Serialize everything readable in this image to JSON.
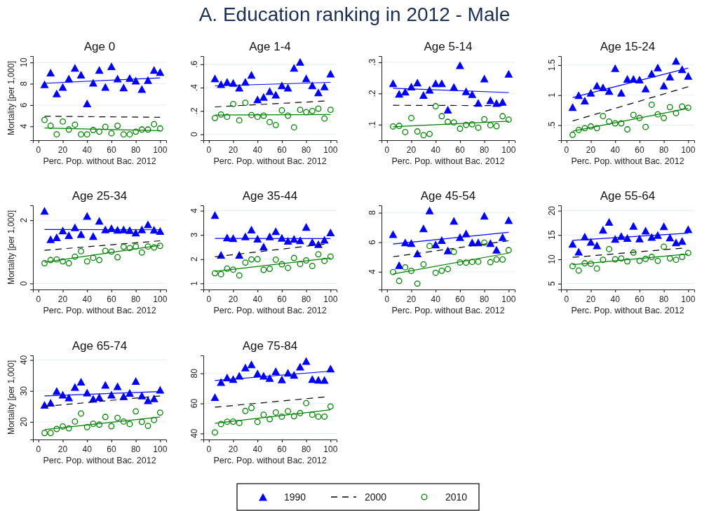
{
  "chart_data": [
    {
      "type": "other",
      "title": "A. Education ranking in 2012 - Male"
    },
    {
      "type": "scatter",
      "title": "Age 0",
      "xlabel": "Perc. Pop. without Bac. 2012",
      "ylabel": "Mortality [per 1,000]",
      "legend": "bottom",
      "grid": "y",
      "x": [
        5,
        10,
        15,
        20,
        25,
        30,
        35,
        40,
        45,
        50,
        55,
        60,
        65,
        70,
        75,
        80,
        85,
        90,
        95,
        100
      ],
      "xlim": [
        -4.5,
        105
      ],
      "xticks": [
        0,
        20,
        40,
        60,
        80,
        100
      ],
      "ylim": [
        2.7,
        10.6
      ],
      "yticks": [
        4,
        6,
        8,
        10
      ],
      "series": [
        {
          "name": "1990",
          "type": "scatter",
          "marker": "triangle",
          "color": "#0000ff",
          "values": [
            7.95,
            9.05,
            7.1,
            7.7,
            8.5,
            9.5,
            8.85,
            6.15,
            8.1,
            9.3,
            7.7,
            9.65,
            8.5,
            7.65,
            8.55,
            8.3,
            7.5,
            8.35,
            9.3,
            9.1
          ]
        },
        {
          "type": "line",
          "x": [
            5,
            100
          ],
          "color": "#0000ff",
          "values": [
            8.05,
            8.55
          ]
        },
        {
          "name": "2000",
          "type": "line",
          "line_style": "dashed",
          "x": [
            5,
            100
          ],
          "color": "#000000",
          "values": [
            4.95,
            4.85
          ]
        },
        {
          "name": "2010",
          "type": "scatter",
          "marker": "circle",
          "color": "#008000",
          "values": [
            4.6,
            4.05,
            3.25,
            4.45,
            3.7,
            4.15,
            3.25,
            3.25,
            3.65,
            3.5,
            3.95,
            3.35,
            4.05,
            3.25,
            3.25,
            3.5,
            3.7,
            3.7,
            4.2,
            3.8
          ]
        },
        {
          "type": "line",
          "x": [
            5,
            100
          ],
          "color": "#008000",
          "values": [
            3.85,
            3.6
          ]
        }
      ]
    },
    {
      "type": "scatter",
      "title": "Age 1-4",
      "xlabel": "Perc. Pop. without Bac. 2012",
      "grid": "y",
      "x": [
        5,
        10,
        15,
        20,
        25,
        30,
        35,
        40,
        45,
        50,
        55,
        60,
        65,
        70,
        75,
        80,
        85,
        90,
        95,
        100
      ],
      "xlim": [
        -4.5,
        105
      ],
      "xticks": [
        0,
        20,
        40,
        60,
        80,
        100
      ],
      "ylim": [
        -0.05,
        0.67
      ],
      "yticks": [
        0,
        {
          "value": 0.2,
          "label": ".2"
        },
        {
          "value": 0.4,
          "label": ".4"
        },
        {
          "value": 0.6,
          "label": ".6"
        }
      ],
      "series": [
        {
          "name": "1990",
          "type": "scatter",
          "marker": "triangle",
          "color": "#0000ff",
          "values": [
            0.48,
            0.43,
            0.45,
            0.44,
            0.4,
            0.45,
            0.51,
            0.3,
            0.32,
            0.37,
            0.34,
            0.42,
            0.4,
            0.57,
            0.62,
            0.48,
            0.42,
            0.36,
            0.41,
            0.52
          ]
        },
        {
          "type": "line",
          "x": [
            5,
            100
          ],
          "color": "#0000ff",
          "values": [
            0.415,
            0.445
          ]
        },
        {
          "name": "2000",
          "type": "line",
          "line_style": "dashed",
          "x": [
            5,
            95
          ],
          "color": "#000000",
          "values": [
            0.235,
            0.285
          ]
        },
        {
          "name": "2010",
          "type": "scatter",
          "marker": "circle",
          "color": "#008000",
          "values": [
            0.14,
            0.17,
            0.15,
            0.26,
            0.12,
            0.27,
            0.165,
            0.15,
            0.16,
            0.105,
            0.08,
            0.205,
            0.16,
            0.06,
            0.21,
            0.19,
            0.2,
            0.22,
            0.135,
            0.21
          ]
        },
        {
          "type": "line",
          "x": [
            5,
            100
          ],
          "color": "#008000",
          "values": [
            0.165,
            0.17
          ]
        }
      ]
    },
    {
      "type": "scatter",
      "title": "Age 5-14",
      "xlabel": "Perc. Pop. without Bac. 2012",
      "grid": "y",
      "x": [
        5,
        10,
        15,
        20,
        25,
        30,
        35,
        40,
        45,
        50,
        55,
        60,
        65,
        70,
        75,
        80,
        85,
        90,
        95,
        100
      ],
      "xlim": [
        -4.5,
        105
      ],
      "xticks": [
        0,
        20,
        40,
        60,
        80,
        100
      ],
      "ylim": [
        0.05,
        0.32
      ],
      "yticks": [
        {
          "value": 0.1,
          "label": ".1"
        },
        {
          "value": 0.2,
          "label": ".2"
        },
        {
          "value": 0.3,
          "label": ".3"
        }
      ],
      "series": [
        {
          "name": "1990",
          "type": "scatter",
          "marker": "triangle",
          "color": "#0000ff",
          "values": [
            0.233,
            0.199,
            0.206,
            0.222,
            0.235,
            0.195,
            0.212,
            0.233,
            0.233,
            0.148,
            0.221,
            0.291,
            0.207,
            0.198,
            0.17,
            0.248,
            0.178,
            0.169,
            0.173,
            0.263
          ]
        },
        {
          "type": "line",
          "x": [
            5,
            100
          ],
          "color": "#0000ff",
          "values": [
            0.217,
            0.203
          ]
        },
        {
          "name": "2000",
          "type": "line",
          "line_style": "dashed",
          "x": [
            5,
            95
          ],
          "color": "#000000",
          "values": [
            0.162,
            0.161
          ]
        },
        {
          "name": "2010",
          "type": "scatter",
          "marker": "circle",
          "color": "#008000",
          "values": [
            0.094,
            0.096,
            0.076,
            0.121,
            0.078,
            0.066,
            0.07,
            0.159,
            0.127,
            0.109,
            0.107,
            0.087,
            0.099,
            0.101,
            0.09,
            0.117,
            0.098,
            0.095,
            0.127,
            0.116
          ]
        },
        {
          "type": "line",
          "x": [
            5,
            100
          ],
          "color": "#008000",
          "values": [
            0.093,
            0.111
          ]
        }
      ]
    },
    {
      "type": "scatter",
      "title": "Age 15-24",
      "xlabel": "Perc. Pop. without Bac. 2012",
      "grid": "y",
      "x": [
        5,
        10,
        15,
        20,
        25,
        30,
        35,
        40,
        45,
        50,
        55,
        60,
        65,
        70,
        75,
        80,
        85,
        90,
        95,
        100
      ],
      "xlim": [
        -4.5,
        105
      ],
      "xticks": [
        0,
        20,
        40,
        60,
        80,
        100
      ],
      "ylim": [
        0.25,
        1.65
      ],
      "yticks": [
        {
          "value": 0.5,
          "label": ".5"
        },
        1,
        1.5
      ],
      "series": [
        {
          "name": "1990",
          "type": "scatter",
          "marker": "triangle",
          "color": "#0000ff",
          "values": [
            0.8,
            1.0,
            0.91,
            1.04,
            1.16,
            1.13,
            1.07,
            1.45,
            1.04,
            1.27,
            1.27,
            1.26,
            1.11,
            1.36,
            1.46,
            1.16,
            1.31,
            1.57,
            1.43,
            1.32
          ]
        },
        {
          "type": "line",
          "x": [
            5,
            100
          ],
          "color": "#0000ff",
          "values": [
            0.96,
            1.45
          ]
        },
        {
          "name": "2000",
          "type": "line",
          "line_style": "dashed",
          "x": [
            5,
            100
          ],
          "color": "#000000",
          "values": [
            0.57,
            1.14
          ]
        },
        {
          "name": "2010",
          "type": "scatter",
          "marker": "circle",
          "color": "#008000",
          "values": [
            0.34,
            0.42,
            0.45,
            0.48,
            0.45,
            0.65,
            0.56,
            0.53,
            0.53,
            0.43,
            0.67,
            0.62,
            0.47,
            0.84,
            0.68,
            0.62,
            0.8,
            0.7,
            0.81,
            0.79
          ]
        },
        {
          "type": "line",
          "x": [
            5,
            100
          ],
          "color": "#008000",
          "values": [
            0.4,
            0.78
          ]
        }
      ]
    },
    {
      "type": "scatter",
      "title": "Age 25-34",
      "xlabel": "Perc. Pop. without Bac. 2012",
      "ylabel": "Mortality [per 1,000]",
      "grid": "y",
      "x": [
        5,
        10,
        15,
        20,
        25,
        30,
        35,
        40,
        45,
        50,
        55,
        60,
        65,
        70,
        75,
        80,
        85,
        90,
        95,
        100
      ],
      "xlim": [
        -4.5,
        105
      ],
      "xticks": [
        0,
        20,
        40,
        60,
        80,
        100
      ],
      "ylim": [
        -0.19,
        2.47
      ],
      "yticks": [
        0,
        2
      ],
      "series": [
        {
          "name": "1990",
          "type": "scatter",
          "marker": "triangle",
          "color": "#0000ff",
          "values": [
            2.3,
            1.4,
            1.46,
            1.68,
            1.53,
            1.78,
            1.56,
            2.14,
            1.5,
            1.98,
            1.71,
            1.75,
            1.7,
            1.71,
            1.69,
            1.61,
            1.71,
            1.87,
            1.7,
            1.66
          ]
        },
        {
          "type": "line",
          "x": [
            5,
            100
          ],
          "color": "#0000ff",
          "values": [
            1.71,
            1.7
          ]
        },
        {
          "name": "2000",
          "type": "line",
          "line_style": "dashed",
          "x": [
            5,
            100
          ],
          "color": "#000000",
          "values": [
            1.05,
            1.35
          ]
        },
        {
          "name": "2010",
          "type": "scatter",
          "marker": "circle",
          "color": "#008000",
          "values": [
            0.64,
            0.74,
            0.76,
            0.7,
            0.64,
            0.85,
            1.02,
            0.7,
            0.81,
            0.74,
            1.03,
            1.01,
            0.83,
            1.16,
            1.12,
            1.17,
            0.98,
            1.17,
            1.14,
            1.19
          ]
        },
        {
          "type": "line",
          "x": [
            5,
            100
          ],
          "color": "#008000",
          "values": [
            0.67,
            1.21
          ]
        }
      ]
    },
    {
      "type": "scatter",
      "title": "Age 35-44",
      "xlabel": "Perc. Pop. without Bac. 2012",
      "grid": "y",
      "x": [
        5,
        10,
        15,
        20,
        25,
        30,
        35,
        40,
        45,
        50,
        55,
        60,
        65,
        70,
        75,
        80,
        85,
        90,
        95,
        100
      ],
      "xlim": [
        -4.5,
        105
      ],
      "xticks": [
        0,
        20,
        40,
        60,
        80,
        100
      ],
      "ylim": [
        0.75,
        4.22
      ],
      "yticks": [
        1,
        2,
        3,
        4
      ],
      "series": [
        {
          "name": "1990",
          "type": "scatter",
          "marker": "triangle",
          "color": "#0000ff",
          "values": [
            3.82,
            2.18,
            2.9,
            2.87,
            2.18,
            2.94,
            3.22,
            2.85,
            2.52,
            2.94,
            3.16,
            2.88,
            2.76,
            2.84,
            2.78,
            3.33,
            2.71,
            2.62,
            2.8,
            3.11
          ]
        },
        {
          "type": "line",
          "x": [
            5,
            100
          ],
          "color": "#0000ff",
          "values": [
            2.86,
            2.85
          ]
        },
        {
          "name": "2000",
          "type": "line",
          "line_style": "dashed",
          "x": [
            5,
            95
          ],
          "color": "#000000",
          "values": [
            2.1,
            2.62
          ]
        },
        {
          "name": "2010",
          "type": "scatter",
          "marker": "circle",
          "color": "#008000",
          "values": [
            1.42,
            1.38,
            1.61,
            1.57,
            1.33,
            1.86,
            1.99,
            2.0,
            1.56,
            1.6,
            1.98,
            1.79,
            1.64,
            2.05,
            1.8,
            1.95,
            1.72,
            2.2,
            1.93,
            2.11
          ]
        },
        {
          "type": "line",
          "x": [
            5,
            100
          ],
          "color": "#008000",
          "values": [
            1.5,
            2.05
          ]
        }
      ]
    },
    {
      "type": "scatter",
      "title": "Age 45-54",
      "xlabel": "Perc. Pop. without Bac. 2012",
      "grid": "y",
      "x": [
        5,
        10,
        15,
        20,
        25,
        30,
        35,
        40,
        45,
        50,
        55,
        60,
        65,
        70,
        75,
        80,
        85,
        90,
        95,
        100
      ],
      "xlim": [
        -4.5,
        105
      ],
      "xticks": [
        0,
        20,
        40,
        60,
        80,
        100
      ],
      "ylim": [
        2.8,
        8.5
      ],
      "yticks": [
        4,
        6,
        8
      ],
      "series": [
        {
          "name": "1990",
          "type": "scatter",
          "marker": "triangle",
          "color": "#0000ff",
          "values": [
            6.55,
            4.45,
            6.0,
            5.95,
            5.25,
            6.95,
            8.15,
            5.85,
            6.15,
            5.45,
            7.45,
            6.35,
            6.6,
            6.0,
            6.0,
            7.8,
            5.95,
            5.5,
            6.35,
            7.5
          ]
        },
        {
          "type": "line",
          "x": [
            5,
            100
          ],
          "color": "#0000ff",
          "values": [
            5.88,
            6.68
          ]
        },
        {
          "name": "2000",
          "type": "line",
          "line_style": "dashed",
          "x": [
            5,
            100
          ],
          "color": "#000000",
          "values": [
            5.02,
            6.1
          ]
        },
        {
          "name": "2010",
          "type": "scatter",
          "marker": "circle",
          "color": "#008000",
          "values": [
            3.98,
            3.38,
            4.3,
            4.06,
            3.2,
            4.5,
            5.75,
            3.93,
            4.07,
            4.18,
            5.35,
            4.63,
            4.62,
            4.67,
            4.68,
            5.97,
            4.65,
            4.83,
            4.83,
            5.47
          ]
        },
        {
          "type": "line",
          "x": [
            5,
            100
          ],
          "color": "#008000",
          "values": [
            3.85,
            5.27
          ]
        }
      ]
    },
    {
      "type": "scatter",
      "title": "Age 55-64",
      "xlabel": "Perc. Pop. without Bac. 2012",
      "grid": "y",
      "x": [
        5,
        10,
        15,
        20,
        25,
        30,
        35,
        40,
        45,
        50,
        55,
        60,
        65,
        70,
        75,
        80,
        85,
        90,
        95,
        100
      ],
      "xlim": [
        -4.5,
        105
      ],
      "xticks": [
        0,
        20,
        40,
        60,
        80,
        100
      ],
      "ylim": [
        3.8,
        21.1
      ],
      "yticks": [
        5,
        10,
        15,
        20
      ],
      "series": [
        {
          "name": "1990",
          "type": "scatter",
          "marker": "triangle",
          "color": "#0000ff",
          "values": [
            13.2,
            11.6,
            14.7,
            13.6,
            12.9,
            16.1,
            17.7,
            14.2,
            14.8,
            14.4,
            16.9,
            14.3,
            15.9,
            14.6,
            15.0,
            16.8,
            14.5,
            13.5,
            13.8,
            16.2
          ]
        },
        {
          "type": "line",
          "x": [
            5,
            100
          ],
          "color": "#0000ff",
          "values": [
            13.9,
            15.4
          ]
        },
        {
          "name": "2000",
          "type": "line",
          "line_style": "dashed",
          "x": [
            5,
            95
          ],
          "color": "#000000",
          "values": [
            10.4,
            12.3
          ]
        },
        {
          "name": "2010",
          "type": "scatter",
          "marker": "circle",
          "color": "#008000",
          "values": [
            8.6,
            7.7,
            9.2,
            9.1,
            8.1,
            9.9,
            12.1,
            10.0,
            10.2,
            9.6,
            11.4,
            9.7,
            10.1,
            10.5,
            9.7,
            12.6,
            10.2,
            9.9,
            10.5,
            11.3
          ]
        },
        {
          "type": "line",
          "x": [
            5,
            100
          ],
          "color": "#008000",
          "values": [
            8.9,
            11.1
          ]
        }
      ]
    },
    {
      "type": "scatter",
      "title": "Age 65-74",
      "xlabel": "Perc. Pop. without Bac. 2012",
      "ylabel": "Mortality [per 1,000]",
      "grid": "y",
      "x": [
        5,
        10,
        15,
        20,
        25,
        30,
        35,
        40,
        45,
        50,
        55,
        60,
        65,
        70,
        75,
        80,
        85,
        90,
        95,
        100
      ],
      "xlim": [
        -4.5,
        105
      ],
      "xticks": [
        0,
        20,
        40,
        60,
        80,
        100
      ],
      "ylim": [
        14.3,
        41.5
      ],
      "yticks": [
        20,
        30,
        40
      ],
      "series": [
        {
          "name": "1990",
          "type": "scatter",
          "marker": "triangle",
          "color": "#0000ff",
          "values": [
            25.5,
            26.2,
            30.0,
            28.8,
            27.9,
            31.3,
            33.0,
            29.5,
            27.5,
            28.0,
            32.0,
            28.8,
            31.5,
            28.3,
            29.4,
            33.2,
            28.5,
            27.0,
            27.6,
            30.4
          ]
        },
        {
          "type": "line",
          "x": [
            5,
            100
          ],
          "color": "#0000ff",
          "values": [
            28.4,
            29.8
          ]
        },
        {
          "name": "2000",
          "type": "line",
          "line_style": "dashed",
          "x": [
            5,
            100
          ],
          "color": "#000000",
          "values": [
            25.0,
            28.4
          ]
        },
        {
          "name": "2010",
          "type": "scatter",
          "marker": "circle",
          "color": "#008000",
          "values": [
            16.4,
            16.4,
            17.7,
            18.5,
            17.9,
            20.1,
            22.7,
            18.3,
            19.4,
            19.1,
            21.6,
            18.6,
            21.3,
            20.1,
            19.3,
            23.4,
            20.0,
            18.7,
            20.6,
            23.0
          ]
        },
        {
          "type": "line",
          "x": [
            5,
            100
          ],
          "color": "#008000",
          "values": [
            17.5,
            21.6
          ]
        }
      ]
    },
    {
      "type": "scatter",
      "title": "Age 75-84",
      "xlabel": "Perc. Pop. without Bac. 2012",
      "grid": "y",
      "x": [
        5,
        10,
        15,
        20,
        25,
        30,
        35,
        40,
        45,
        50,
        55,
        60,
        65,
        70,
        75,
        80,
        85,
        90,
        95,
        100
      ],
      "xlim": [
        -4.5,
        105
      ],
      "xticks": [
        0,
        20,
        40,
        60,
        80,
        100
      ],
      "ylim": [
        36,
        92
      ],
      "yticks": [
        40,
        60,
        80
      ],
      "series": [
        {
          "name": "1990",
          "type": "scatter",
          "marker": "triangle",
          "color": "#0000ff",
          "values": [
            64.2,
            74.3,
            77.3,
            76.2,
            78.5,
            84.0,
            86.0,
            80.0,
            78.5,
            77.0,
            81.5,
            76.0,
            80.5,
            79.0,
            84.5,
            88.3,
            76.2,
            75.8,
            75.7,
            83.2
          ]
        },
        {
          "type": "line",
          "x": [
            5,
            100
          ],
          "color": "#0000ff",
          "values": [
            75.3,
            81.5
          ]
        },
        {
          "name": "2000",
          "type": "line",
          "line_style": "dashed",
          "x": [
            5,
            95
          ],
          "color": "#000000",
          "values": [
            57.5,
            64.3
          ]
        },
        {
          "name": "2010",
          "type": "scatter",
          "marker": "circle",
          "color": "#008000",
          "values": [
            40.7,
            46.3,
            47.8,
            47.9,
            47.0,
            55.0,
            57.0,
            47.7,
            52.5,
            49.5,
            54.0,
            51.2,
            54.8,
            51.5,
            53.6,
            60.2,
            52.5,
            51.2,
            51.2,
            58.0
          ]
        },
        {
          "type": "line",
          "x": [
            5,
            100
          ],
          "color": "#008000",
          "values": [
            46.8,
            55.8
          ]
        }
      ]
    }
  ]
}
